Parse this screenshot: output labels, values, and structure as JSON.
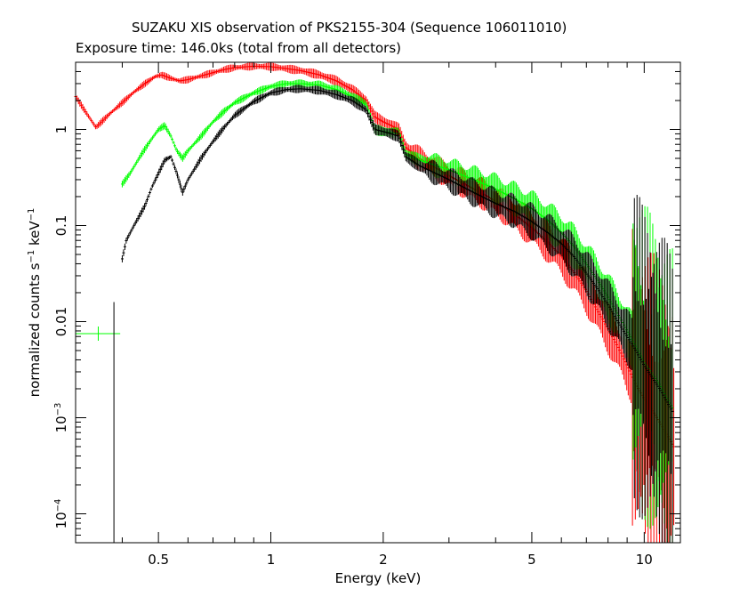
{
  "chart_data": {
    "type": "scatter",
    "title": "SUZAKU XIS observation of PKS2155-304 (Sequence 106011010)",
    "subtitle": "Exposure time: 146.0ks (total from all detectors)",
    "xlabel": "Energy (keV)",
    "ylabel": "normalized counts s^-1 keV^-1",
    "ylabel_parts": {
      "pre": "normalized counts s",
      "exp1": "−1",
      "mid": " keV",
      "exp2": "−1"
    },
    "xscale": "log",
    "yscale": "log",
    "xlim": [
      0.3,
      12.5
    ],
    "ylim": [
      5e-05,
      5
    ],
    "x_ticks": [
      {
        "value": 0.5,
        "label": "0.5"
      },
      {
        "value": 1,
        "label": "1"
      },
      {
        "value": 2,
        "label": "2"
      },
      {
        "value": 5,
        "label": "5"
      },
      {
        "value": 10,
        "label": "10"
      }
    ],
    "y_ticks": [
      {
        "value": 1,
        "label": "1"
      },
      {
        "value": 0.1,
        "label": "0.1"
      },
      {
        "value": 0.01,
        "label": "0.01"
      },
      {
        "value": 0.001,
        "label": "10",
        "exp": "−3"
      },
      {
        "value": 0.0001,
        "label": "10",
        "exp": "−4"
      }
    ],
    "series": [
      {
        "color": "#ff0000",
        "points": [
          [
            0.3,
            2.2
          ],
          [
            0.32,
            1.5
          ],
          [
            0.34,
            1.05
          ],
          [
            0.37,
            1.45
          ],
          [
            0.4,
            1.9
          ],
          [
            0.43,
            2.45
          ],
          [
            0.46,
            3.0
          ],
          [
            0.49,
            3.55
          ],
          [
            0.51,
            3.7
          ],
          [
            0.54,
            3.4
          ],
          [
            0.57,
            3.2
          ],
          [
            0.6,
            3.3
          ],
          [
            0.65,
            3.6
          ],
          [
            0.7,
            3.9
          ],
          [
            0.75,
            4.2
          ],
          [
            0.8,
            4.4
          ],
          [
            0.9,
            4.55
          ],
          [
            1.0,
            4.5
          ],
          [
            1.1,
            4.3
          ],
          [
            1.2,
            4.1
          ],
          [
            1.35,
            3.7
          ],
          [
            1.5,
            3.2
          ],
          [
            1.65,
            2.6
          ],
          [
            1.8,
            2.0
          ],
          [
            1.9,
            1.35
          ],
          [
            2.0,
            1.2
          ],
          [
            2.1,
            1.1
          ],
          [
            2.2,
            1.0
          ],
          [
            2.3,
            0.65
          ],
          [
            2.5,
            0.5
          ],
          [
            3.0,
            0.33
          ],
          [
            3.5,
            0.24
          ],
          [
            4.0,
            0.18
          ],
          [
            4.5,
            0.13
          ],
          [
            5.0,
            0.095
          ],
          [
            5.5,
            0.068
          ],
          [
            6.0,
            0.048
          ],
          [
            6.5,
            0.032
          ],
          [
            7.0,
            0.021
          ],
          [
            7.5,
            0.013
          ],
          [
            8.0,
            0.0085
          ],
          [
            8.5,
            0.0055
          ],
          [
            9.0,
            0.0035
          ],
          [
            9.5,
            0.0022
          ],
          [
            10.0,
            0.0016
          ],
          [
            11.0,
            0.0009
          ],
          [
            12.0,
            0.0005
          ]
        ]
      },
      {
        "color": "#00ff00",
        "points": [
          [
            0.4,
            0.27
          ],
          [
            0.42,
            0.35
          ],
          [
            0.45,
            0.55
          ],
          [
            0.48,
            0.8
          ],
          [
            0.5,
            1.0
          ],
          [
            0.52,
            1.1
          ],
          [
            0.54,
            0.85
          ],
          [
            0.56,
            0.6
          ],
          [
            0.58,
            0.5
          ],
          [
            0.6,
            0.6
          ],
          [
            0.65,
            0.85
          ],
          [
            0.7,
            1.2
          ],
          [
            0.75,
            1.55
          ],
          [
            0.8,
            1.9
          ],
          [
            0.9,
            2.4
          ],
          [
            1.0,
            2.8
          ],
          [
            1.1,
            3.0
          ],
          [
            1.2,
            3.0
          ],
          [
            1.35,
            2.9
          ],
          [
            1.5,
            2.6
          ],
          [
            1.65,
            2.2
          ],
          [
            1.8,
            1.8
          ],
          [
            1.9,
            1.0
          ],
          [
            2.0,
            0.95
          ],
          [
            2.1,
            0.93
          ],
          [
            2.2,
            0.9
          ],
          [
            2.3,
            0.55
          ],
          [
            2.5,
            0.48
          ],
          [
            3.0,
            0.38
          ],
          [
            3.5,
            0.3
          ],
          [
            4.0,
            0.24
          ],
          [
            4.5,
            0.19
          ],
          [
            5.0,
            0.15
          ],
          [
            5.5,
            0.115
          ],
          [
            6.0,
            0.085
          ],
          [
            6.5,
            0.06
          ],
          [
            7.0,
            0.04
          ],
          [
            7.5,
            0.027
          ],
          [
            8.0,
            0.018
          ],
          [
            8.5,
            0.012
          ],
          [
            9.0,
            0.008
          ],
          [
            9.5,
            0.0055
          ],
          [
            10.0,
            0.0038
          ],
          [
            11.0,
            0.0022
          ],
          [
            12.0,
            0.0012
          ]
        ]
      },
      {
        "color": "#000000",
        "points": [
          [
            0.4,
            0.045
          ],
          [
            0.41,
            0.07
          ],
          [
            0.43,
            0.1
          ],
          [
            0.46,
            0.16
          ],
          [
            0.48,
            0.25
          ],
          [
            0.5,
            0.35
          ],
          [
            0.52,
            0.48
          ],
          [
            0.54,
            0.52
          ],
          [
            0.56,
            0.35
          ],
          [
            0.58,
            0.22
          ],
          [
            0.6,
            0.3
          ],
          [
            0.65,
            0.5
          ],
          [
            0.7,
            0.75
          ],
          [
            0.75,
            1.05
          ],
          [
            0.8,
            1.4
          ],
          [
            0.9,
            1.95
          ],
          [
            1.0,
            2.4
          ],
          [
            1.1,
            2.6
          ],
          [
            1.2,
            2.65
          ],
          [
            1.35,
            2.55
          ],
          [
            1.5,
            2.3
          ],
          [
            1.65,
            2.0
          ],
          [
            1.8,
            1.6
          ],
          [
            1.9,
            1.0
          ],
          [
            2.0,
            0.95
          ],
          [
            2.1,
            0.9
          ],
          [
            2.2,
            0.85
          ],
          [
            2.3,
            0.52
          ],
          [
            2.5,
            0.42
          ],
          [
            3.0,
            0.3
          ],
          [
            3.5,
            0.22
          ],
          [
            4.0,
            0.17
          ],
          [
            4.5,
            0.14
          ],
          [
            5.0,
            0.11
          ],
          [
            5.5,
            0.085
          ],
          [
            6.0,
            0.065
          ],
          [
            6.5,
            0.047
          ],
          [
            7.0,
            0.032
          ],
          [
            7.5,
            0.022
          ],
          [
            8.0,
            0.015
          ],
          [
            8.5,
            0.01
          ],
          [
            9.0,
            0.007
          ],
          [
            9.5,
            0.005
          ],
          [
            10.0,
            0.0035
          ],
          [
            11.0,
            0.002
          ],
          [
            12.0,
            0.0011
          ]
        ]
      }
    ],
    "isolated_points": [
      {
        "color": "#00ff00",
        "x": 0.345,
        "y": 0.0075,
        "xerr": [
          0.3,
          0.395
        ]
      },
      {
        "color": "#000000",
        "x": 0.38,
        "y": 5e-05,
        "yerr": [
          5e-05,
          0.016
        ]
      }
    ]
  }
}
